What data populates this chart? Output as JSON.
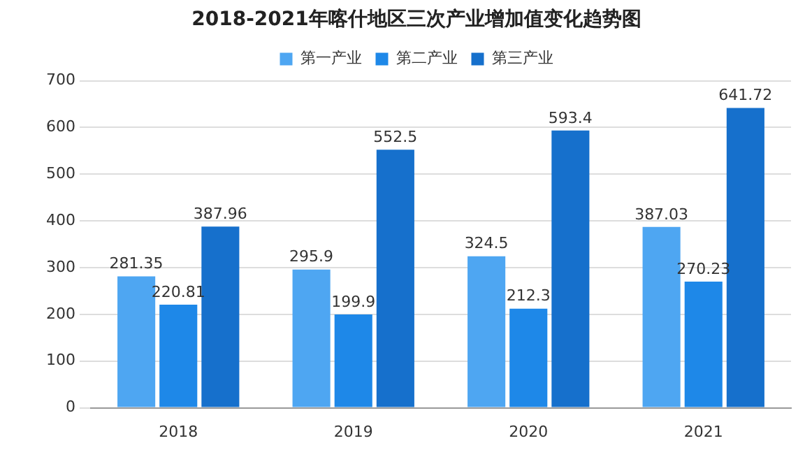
{
  "chart_data": {
    "type": "bar",
    "title": "2018-2021年喀什地区三次产业增加值变化趋势图",
    "categories": [
      "2018",
      "2019",
      "2020",
      "2021"
    ],
    "series": [
      {
        "name": "第一产业",
        "color": "#4ea6f2",
        "values": [
          281.35,
          295.9,
          324.5,
          387.03
        ]
      },
      {
        "name": "第二产业",
        "color": "#1e88e8",
        "values": [
          220.81,
          199.9,
          212.3,
          270.23
        ]
      },
      {
        "name": "第三产业",
        "color": "#1670cc",
        "values": [
          387.96,
          552.5,
          593.4,
          641.72
        ]
      }
    ],
    "ylim": [
      0,
      700
    ],
    "yticks": [
      0,
      100,
      200,
      300,
      400,
      500,
      600,
      700
    ],
    "grid": "y",
    "legend": "top",
    "data_labels": true
  }
}
